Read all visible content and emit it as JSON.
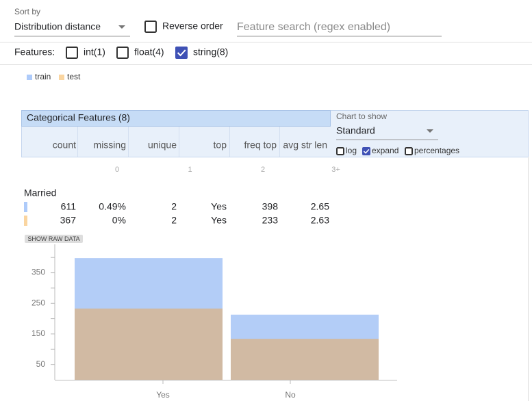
{
  "controls": {
    "sort_label": "Sort by",
    "sort_value": "Distribution distance",
    "reverse_label": "Reverse order",
    "search_placeholder": "Feature search (regex enabled)"
  },
  "features": {
    "label": "Features:",
    "filters": [
      {
        "label": "int(1)",
        "checked": false
      },
      {
        "label": "float(4)",
        "checked": false
      },
      {
        "label": "string(8)",
        "checked": true
      }
    ]
  },
  "table": {
    "title": "Categorical Features (8)",
    "columns": [
      "count",
      "missing",
      "unique",
      "top",
      "freq top",
      "avg str len"
    ],
    "chart_to_show_label": "Chart to show",
    "chart_to_show_value": "Standard",
    "options": [
      {
        "label": "log",
        "checked": false
      },
      {
        "label": "expand",
        "checked": true
      },
      {
        "label": "percentages",
        "checked": false
      }
    ],
    "scale": [
      "0",
      "1",
      "2",
      "3+"
    ],
    "feature": "Married",
    "rows": [
      [
        611,
        "0.49%",
        2,
        "Yes",
        398,
        2.65
      ],
      [
        367,
        "0%",
        2,
        "Yes",
        233,
        2.63
      ]
    ],
    "raw_data_button": "SHOW RAW DATA"
  },
  "chart_data": {
    "type": "bar",
    "categories": [
      "Yes",
      "No"
    ],
    "series": [
      {
        "name": "train",
        "color": "#b3cdf7",
        "values": [
          398,
          213
        ]
      },
      {
        "name": "test",
        "color": "#d1baa3",
        "values": [
          233,
          134
        ]
      }
    ],
    "ylim": [
      0,
      443
    ],
    "yticks": [
      50,
      150,
      250,
      350
    ],
    "minor_yticks": [
      100,
      200,
      300,
      400
    ],
    "overlay": true
  }
}
